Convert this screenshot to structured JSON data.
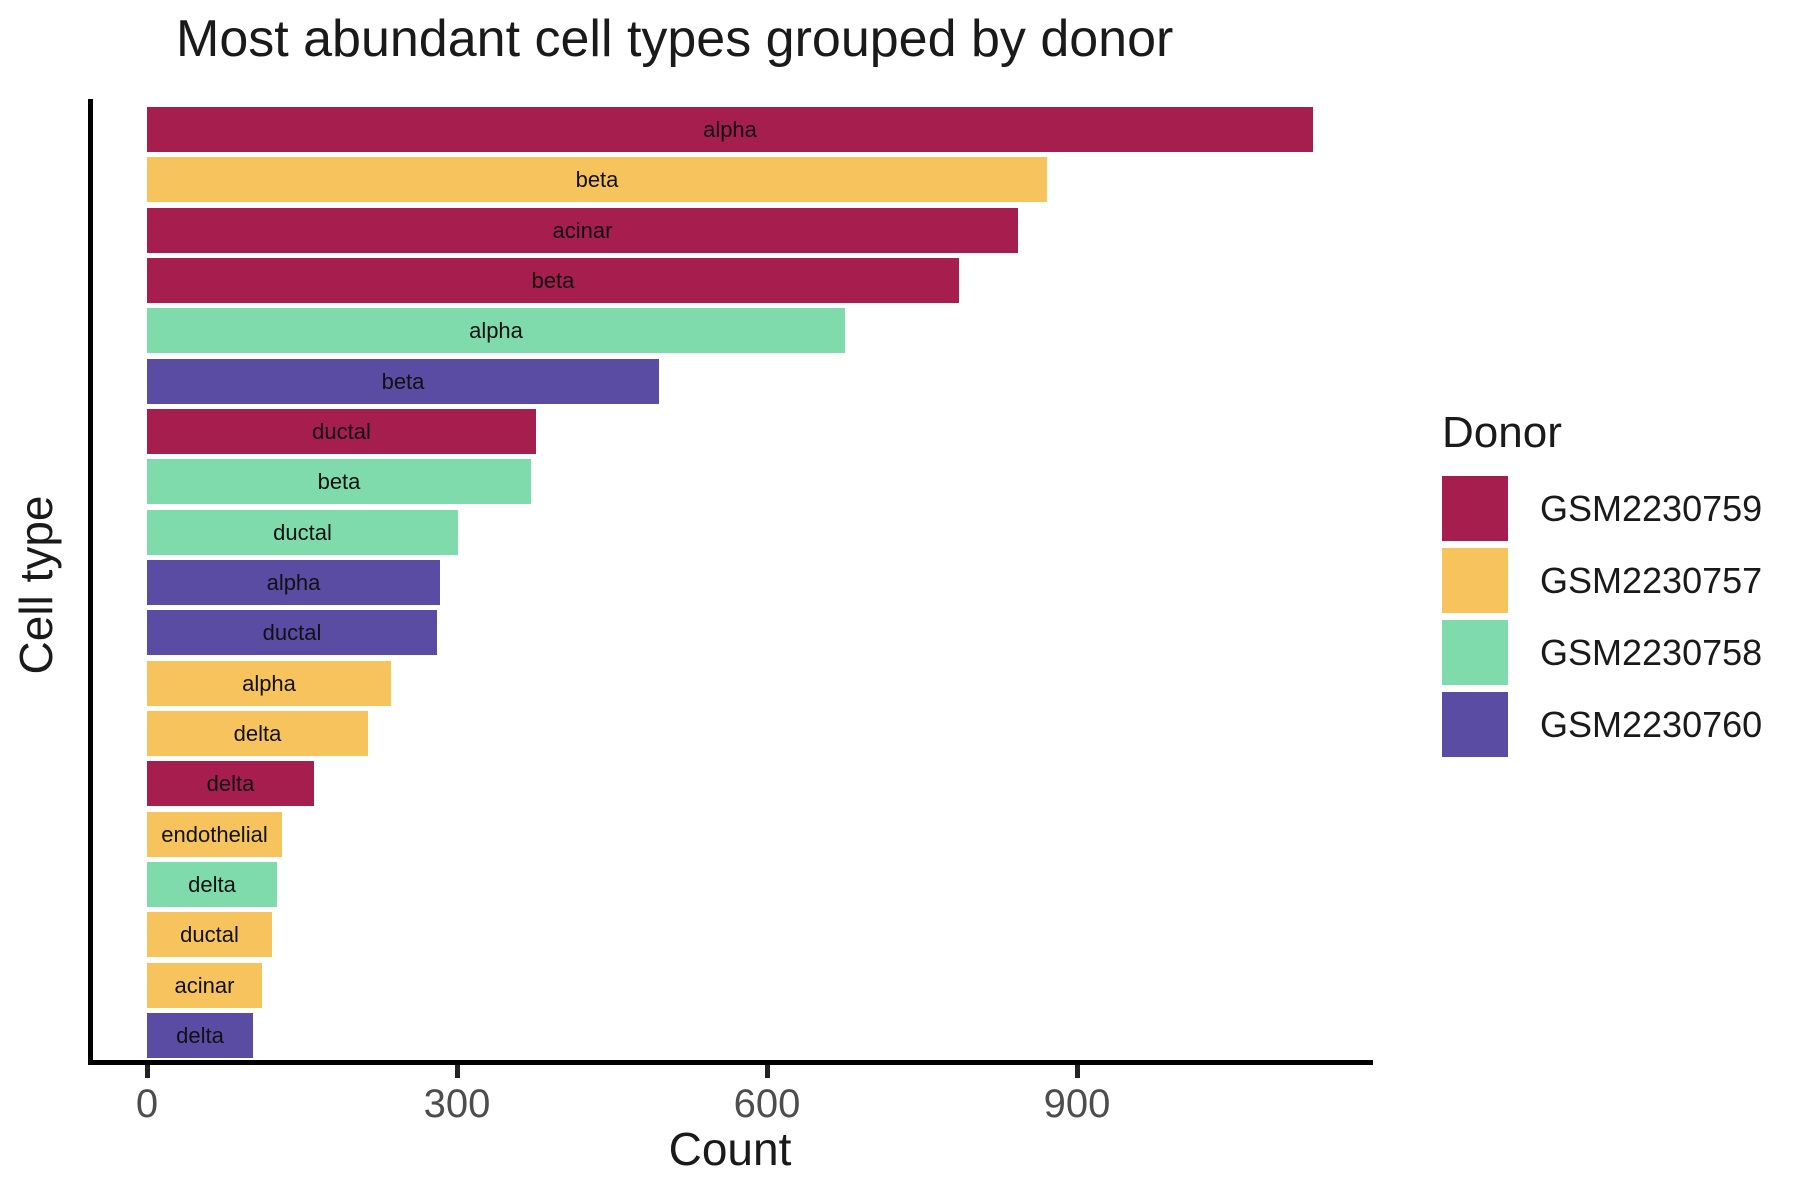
{
  "chart_data": {
    "type": "bar",
    "orientation": "horizontal",
    "title": "Most abundant cell types grouped by donor",
    "xlabel": "Count",
    "ylabel": "Cell type",
    "xlim": [
      0,
      1185
    ],
    "x_ticks": [
      0,
      300,
      600,
      900
    ],
    "grid": false,
    "legend_title": "Donor",
    "legend_position": "right",
    "donors": [
      {
        "id": "GSM2230759",
        "color": "#A61E4D"
      },
      {
        "id": "GSM2230757",
        "color": "#F7C35C"
      },
      {
        "id": "GSM2230758",
        "color": "#7FDBAC"
      },
      {
        "id": "GSM2230760",
        "color": "#5A4BA3"
      }
    ],
    "bars": [
      {
        "cell_type": "alpha",
        "donor": "GSM2230759",
        "count": 1128
      },
      {
        "cell_type": "beta",
        "donor": "GSM2230757",
        "count": 871
      },
      {
        "cell_type": "acinar",
        "donor": "GSM2230759",
        "count": 843
      },
      {
        "cell_type": "beta",
        "donor": "GSM2230759",
        "count": 786
      },
      {
        "cell_type": "alpha",
        "donor": "GSM2230758",
        "count": 675
      },
      {
        "cell_type": "beta",
        "donor": "GSM2230760",
        "count": 495
      },
      {
        "cell_type": "ductal",
        "donor": "GSM2230759",
        "count": 376
      },
      {
        "cell_type": "beta",
        "donor": "GSM2230758",
        "count": 372
      },
      {
        "cell_type": "ductal",
        "donor": "GSM2230758",
        "count": 301
      },
      {
        "cell_type": "alpha",
        "donor": "GSM2230760",
        "count": 284
      },
      {
        "cell_type": "ductal",
        "donor": "GSM2230760",
        "count": 281
      },
      {
        "cell_type": "alpha",
        "donor": "GSM2230757",
        "count": 236
      },
      {
        "cell_type": "delta",
        "donor": "GSM2230757",
        "count": 214
      },
      {
        "cell_type": "delta",
        "donor": "GSM2230759",
        "count": 162
      },
      {
        "cell_type": "endothelial",
        "donor": "GSM2230757",
        "count": 131
      },
      {
        "cell_type": "delta",
        "donor": "GSM2230758",
        "count": 126
      },
      {
        "cell_type": "ductal",
        "donor": "GSM2230757",
        "count": 121
      },
      {
        "cell_type": "acinar",
        "donor": "GSM2230757",
        "count": 111
      },
      {
        "cell_type": "delta",
        "donor": "GSM2230760",
        "count": 103
      }
    ],
    "colors": {
      "text": "#1A1A1A",
      "tick_label": "#4D4D4D",
      "axis_line": "#000000"
    }
  }
}
